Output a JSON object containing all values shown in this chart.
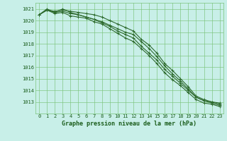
{
  "x": [
    0,
    1,
    2,
    3,
    4,
    5,
    6,
    7,
    8,
    9,
    10,
    11,
    12,
    13,
    14,
    15,
    16,
    17,
    18,
    19,
    20,
    21,
    22,
    23
  ],
  "line1": [
    1020.5,
    1021.0,
    1020.7,
    1021.0,
    1020.7,
    1020.5,
    1020.3,
    1020.1,
    1019.8,
    1019.5,
    1019.1,
    1018.8,
    1018.5,
    1017.8,
    1017.2,
    1016.6,
    1015.8,
    1015.2,
    1014.6,
    1014.0,
    1013.4,
    1013.1,
    1012.9,
    1012.7
  ],
  "line2": [
    1020.5,
    1020.9,
    1020.6,
    1020.7,
    1020.4,
    1020.3,
    1020.2,
    1019.9,
    1019.7,
    1019.3,
    1018.9,
    1018.5,
    1018.2,
    1017.6,
    1017.0,
    1016.3,
    1015.5,
    1014.9,
    1014.4,
    1013.8,
    1013.2,
    1012.9,
    1012.8,
    1012.6
  ],
  "line3": [
    1020.5,
    1020.9,
    1020.7,
    1020.8,
    1020.6,
    1020.5,
    1020.3,
    1020.1,
    1019.9,
    1019.6,
    1019.3,
    1019.0,
    1018.8,
    1018.2,
    1017.6,
    1016.9,
    1016.1,
    1015.4,
    1014.8,
    1014.1,
    1013.4,
    1013.1,
    1013.0,
    1012.8
  ],
  "line4": [
    1020.5,
    1020.9,
    1020.8,
    1020.9,
    1020.8,
    1020.7,
    1020.6,
    1020.5,
    1020.3,
    1020.0,
    1019.7,
    1019.4,
    1019.1,
    1018.4,
    1017.9,
    1017.2,
    1016.3,
    1015.7,
    1015.0,
    1014.3,
    1013.5,
    1013.2,
    1013.0,
    1012.9
  ],
  "ylim": [
    1012.0,
    1021.5
  ],
  "yticks": [
    1013,
    1014,
    1015,
    1016,
    1017,
    1018,
    1019,
    1020,
    1021
  ],
  "xlim": [
    -0.5,
    23.5
  ],
  "xticks": [
    0,
    1,
    2,
    3,
    4,
    5,
    6,
    7,
    8,
    9,
    10,
    11,
    12,
    13,
    14,
    15,
    16,
    17,
    18,
    19,
    20,
    21,
    22,
    23
  ],
  "line_color": "#2d6a2d",
  "bg_color": "#c8efe8",
  "grid_color": "#7bc47b",
  "xlabel": "Graphe pression niveau de la mer (hPa)",
  "xlabel_color": "#1a5c1a",
  "tick_color": "#1a5c1a",
  "marker": "+",
  "marker_size": 3,
  "line_width": 0.8,
  "tick_fontsize": 5.0,
  "xlabel_fontsize": 6.0
}
